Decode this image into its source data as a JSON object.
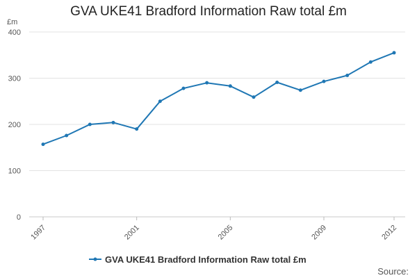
{
  "chart_data": {
    "type": "line",
    "title": "GVA UKE41 Bradford Information Raw total £m",
    "unit_label": "£m",
    "source_label": "Source:",
    "x": [
      1997,
      1998,
      1999,
      2000,
      2001,
      2002,
      2003,
      2004,
      2005,
      2006,
      2007,
      2008,
      2009,
      2010,
      2011,
      2012
    ],
    "x_tick_labels": [
      "1997",
      "2001",
      "2005",
      "2009",
      "2012"
    ],
    "ylim": [
      0,
      400
    ],
    "y_ticks": [
      0,
      100,
      200,
      300,
      400
    ],
    "grid": true,
    "legend_position": "bottom",
    "series": [
      {
        "name": "GVA UKE41 Bradford Information Raw total £m",
        "color": "#1f77b4",
        "values": [
          157,
          176,
          200,
          204,
          190,
          250,
          278,
          290,
          283,
          259,
          291,
          274,
          293,
          306,
          335,
          355
        ]
      }
    ]
  }
}
